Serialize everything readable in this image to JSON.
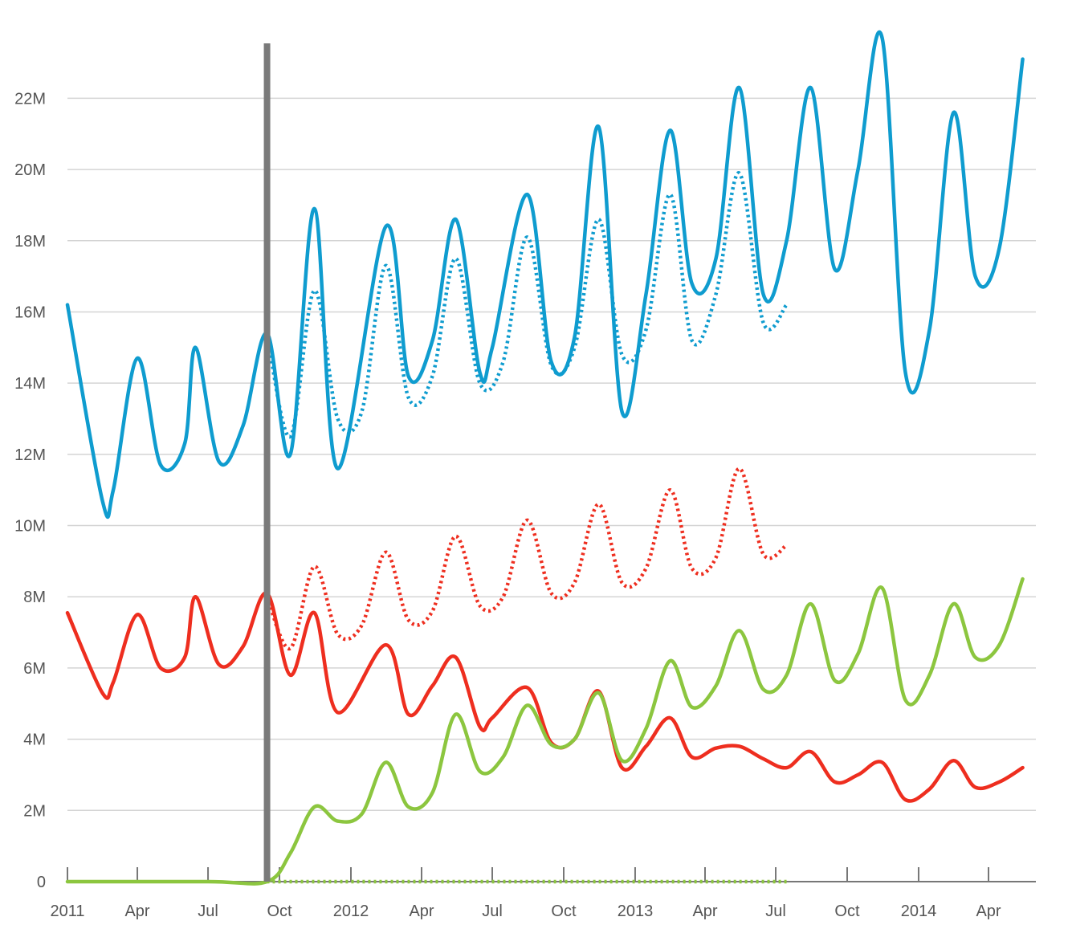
{
  "chart_data": {
    "type": "line",
    "title": "",
    "xlabel": "",
    "ylabel": "",
    "x_start": "2011-01",
    "x_end": "2014-06",
    "ylim": [
      0,
      23700000
    ],
    "grid": true,
    "yticks": [
      {
        "value": 0,
        "label": "0"
      },
      {
        "value": 2000000,
        "label": "2M"
      },
      {
        "value": 4000000,
        "label": "4M"
      },
      {
        "value": 6000000,
        "label": "6M"
      },
      {
        "value": 8000000,
        "label": "8M"
      },
      {
        "value": 10000000,
        "label": "10M"
      },
      {
        "value": 12000000,
        "label": "12M"
      },
      {
        "value": 14000000,
        "label": "14M"
      },
      {
        "value": 16000000,
        "label": "16M"
      },
      {
        "value": 18000000,
        "label": "18M"
      },
      {
        "value": 20000000,
        "label": "20M"
      },
      {
        "value": 22000000,
        "label": "22M"
      }
    ],
    "xticks": [
      {
        "date": "2011-01",
        "label": "2011"
      },
      {
        "date": "2011-04",
        "label": "Apr"
      },
      {
        "date": "2011-07",
        "label": "Jul"
      },
      {
        "date": "2011-10",
        "label": "Oct"
      },
      {
        "date": "2012-01",
        "label": "2012"
      },
      {
        "date": "2012-04",
        "label": "Apr"
      },
      {
        "date": "2012-07",
        "label": "Jul"
      },
      {
        "date": "2012-10",
        "label": "Oct"
      },
      {
        "date": "2013-01",
        "label": "2013"
      },
      {
        "date": "2013-04",
        "label": "Apr"
      },
      {
        "date": "2013-07",
        "label": "Jul"
      },
      {
        "date": "2013-10",
        "label": "Oct"
      },
      {
        "date": "2014-01",
        "label": "2014"
      },
      {
        "date": "2014-04",
        "label": "Apr"
      }
    ],
    "marker_line": {
      "date": "2011-09-15",
      "color": "#7a7a7a"
    },
    "series": [
      {
        "key": "blue-actual",
        "color": "#0f9ccf",
        "style": "solid",
        "points": [
          [
            "2011-01-01",
            16.2
          ],
          [
            "2011-02-15",
            10.7
          ],
          [
            "2011-03-01",
            11.0
          ],
          [
            "2011-04-01",
            14.7
          ],
          [
            "2011-05-01",
            11.7
          ],
          [
            "2011-06-01",
            12.3
          ],
          [
            "2011-06-15",
            15.0
          ],
          [
            "2011-07-15",
            11.8
          ],
          [
            "2011-08-15",
            12.8
          ],
          [
            "2011-09-15",
            15.4
          ],
          [
            "2011-10-15",
            12.0
          ],
          [
            "2011-11-15",
            18.9
          ],
          [
            "2011-12-15",
            11.6
          ],
          [
            "2012-02-15",
            18.4
          ],
          [
            "2012-03-15",
            14.2
          ],
          [
            "2012-04-15",
            15.2
          ],
          [
            "2012-05-15",
            18.6
          ],
          [
            "2012-06-15",
            14.3
          ],
          [
            "2012-07-01",
            15.0
          ],
          [
            "2012-08-15",
            19.3
          ],
          [
            "2012-09-15",
            14.6
          ],
          [
            "2012-10-15",
            15.3
          ],
          [
            "2012-11-15",
            21.2
          ],
          [
            "2012-12-15",
            13.2
          ],
          [
            "2013-01-15",
            16.5
          ],
          [
            "2013-02-15",
            21.1
          ],
          [
            "2013-03-15",
            16.8
          ],
          [
            "2013-04-15",
            17.5
          ],
          [
            "2013-05-15",
            22.3
          ],
          [
            "2013-06-15",
            16.5
          ],
          [
            "2013-07-15",
            18.0
          ],
          [
            "2013-08-15",
            22.3
          ],
          [
            "2013-09-15",
            17.2
          ],
          [
            "2013-10-15",
            20.0
          ],
          [
            "2013-11-15",
            23.7
          ],
          [
            "2013-12-15",
            14.3
          ],
          [
            "2014-01-15",
            15.5
          ],
          [
            "2014-02-15",
            21.6
          ],
          [
            "2014-03-15",
            17.0
          ],
          [
            "2014-04-15",
            17.8
          ],
          [
            "2014-05-15",
            23.1
          ]
        ]
      },
      {
        "key": "blue-projected",
        "color": "#0f9ccf",
        "style": "dotted",
        "points": [
          [
            "2011-09-15",
            15.4
          ],
          [
            "2011-10-15",
            12.5
          ],
          [
            "2011-11-15",
            16.6
          ],
          [
            "2011-12-15",
            13.0
          ],
          [
            "2012-01-15",
            13.2
          ],
          [
            "2012-02-15",
            17.3
          ],
          [
            "2012-03-15",
            13.6
          ],
          [
            "2012-04-15",
            14.2
          ],
          [
            "2012-05-15",
            17.5
          ],
          [
            "2012-06-15",
            14.0
          ],
          [
            "2012-07-15",
            14.6
          ],
          [
            "2012-08-15",
            18.1
          ],
          [
            "2012-09-15",
            14.5
          ],
          [
            "2012-10-15",
            15.0
          ],
          [
            "2012-11-15",
            18.6
          ],
          [
            "2012-12-15",
            14.8
          ],
          [
            "2013-01-15",
            15.5
          ],
          [
            "2013-02-15",
            19.3
          ],
          [
            "2013-03-15",
            15.2
          ],
          [
            "2013-04-15",
            16.5
          ],
          [
            "2013-05-15",
            19.9
          ],
          [
            "2013-06-15",
            15.7
          ],
          [
            "2013-07-15",
            16.2
          ]
        ]
      },
      {
        "key": "red-actual",
        "color": "#ee2e1f",
        "style": "solid",
        "points": [
          [
            "2011-01-01",
            7.55
          ],
          [
            "2011-02-15",
            5.3
          ],
          [
            "2011-03-01",
            5.6
          ],
          [
            "2011-04-01",
            7.5
          ],
          [
            "2011-05-01",
            6.0
          ],
          [
            "2011-06-01",
            6.3
          ],
          [
            "2011-06-15",
            8.0
          ],
          [
            "2011-07-15",
            6.1
          ],
          [
            "2011-08-15",
            6.6
          ],
          [
            "2011-09-15",
            8.1
          ],
          [
            "2011-10-15",
            5.8
          ],
          [
            "2011-11-15",
            7.55
          ],
          [
            "2011-12-15",
            4.75
          ],
          [
            "2012-02-15",
            6.65
          ],
          [
            "2012-03-15",
            4.7
          ],
          [
            "2012-04-15",
            5.5
          ],
          [
            "2012-05-15",
            6.3
          ],
          [
            "2012-06-15",
            4.35
          ],
          [
            "2012-07-01",
            4.6
          ],
          [
            "2012-08-15",
            5.45
          ],
          [
            "2012-09-15",
            3.9
          ],
          [
            "2012-10-15",
            4.0
          ],
          [
            "2012-11-15",
            5.35
          ],
          [
            "2012-12-15",
            3.2
          ],
          [
            "2013-01-15",
            3.8
          ],
          [
            "2013-02-15",
            4.6
          ],
          [
            "2013-03-15",
            3.5
          ],
          [
            "2013-04-15",
            3.75
          ],
          [
            "2013-05-15",
            3.8
          ],
          [
            "2013-06-15",
            3.45
          ],
          [
            "2013-07-15",
            3.2
          ],
          [
            "2013-08-15",
            3.65
          ],
          [
            "2013-09-15",
            2.8
          ],
          [
            "2013-10-15",
            3.0
          ],
          [
            "2013-11-15",
            3.35
          ],
          [
            "2013-12-15",
            2.3
          ],
          [
            "2014-01-15",
            2.6
          ],
          [
            "2014-02-15",
            3.4
          ],
          [
            "2014-03-15",
            2.65
          ],
          [
            "2014-04-15",
            2.8
          ],
          [
            "2014-05-15",
            3.2
          ]
        ]
      },
      {
        "key": "red-projected",
        "color": "#ee2e1f",
        "style": "dotted",
        "points": [
          [
            "2011-09-15",
            8.0
          ],
          [
            "2011-10-15",
            6.55
          ],
          [
            "2011-11-15",
            8.85
          ],
          [
            "2011-12-15",
            6.95
          ],
          [
            "2012-01-15",
            7.2
          ],
          [
            "2012-02-15",
            9.25
          ],
          [
            "2012-03-15",
            7.35
          ],
          [
            "2012-04-15",
            7.6
          ],
          [
            "2012-05-15",
            9.7
          ],
          [
            "2012-06-15",
            7.75
          ],
          [
            "2012-07-15",
            8.0
          ],
          [
            "2012-08-15",
            10.15
          ],
          [
            "2012-09-15",
            8.1
          ],
          [
            "2012-10-15",
            8.4
          ],
          [
            "2012-11-15",
            10.6
          ],
          [
            "2012-12-15",
            8.4
          ],
          [
            "2013-01-15",
            8.8
          ],
          [
            "2013-02-15",
            11.0
          ],
          [
            "2013-03-15",
            8.8
          ],
          [
            "2013-04-15",
            9.1
          ],
          [
            "2013-05-15",
            11.6
          ],
          [
            "2013-06-15",
            9.2
          ],
          [
            "2013-07-15",
            9.45
          ]
        ]
      },
      {
        "key": "green-actual",
        "color": "#8cc63f",
        "style": "solid",
        "points": [
          [
            "2011-01-01",
            0
          ],
          [
            "2011-07-01",
            0
          ],
          [
            "2011-09-15",
            0
          ],
          [
            "2011-10-15",
            0.8
          ],
          [
            "2011-11-15",
            2.1
          ],
          [
            "2011-12-15",
            1.7
          ],
          [
            "2012-01-15",
            1.9
          ],
          [
            "2012-02-15",
            3.35
          ],
          [
            "2012-03-15",
            2.1
          ],
          [
            "2012-04-15",
            2.5
          ],
          [
            "2012-05-15",
            4.7
          ],
          [
            "2012-06-15",
            3.1
          ],
          [
            "2012-07-15",
            3.5
          ],
          [
            "2012-08-15",
            4.95
          ],
          [
            "2012-09-15",
            3.85
          ],
          [
            "2012-10-15",
            4.0
          ],
          [
            "2012-11-15",
            5.3
          ],
          [
            "2012-12-15",
            3.4
          ],
          [
            "2013-01-15",
            4.3
          ],
          [
            "2013-02-15",
            6.2
          ],
          [
            "2013-03-15",
            4.9
          ],
          [
            "2013-04-15",
            5.5
          ],
          [
            "2013-05-15",
            7.05
          ],
          [
            "2013-06-15",
            5.4
          ],
          [
            "2013-07-15",
            5.8
          ],
          [
            "2013-08-15",
            7.8
          ],
          [
            "2013-09-15",
            5.65
          ],
          [
            "2013-10-15",
            6.4
          ],
          [
            "2013-11-15",
            8.25
          ],
          [
            "2013-12-15",
            5.1
          ],
          [
            "2014-01-15",
            5.8
          ],
          [
            "2014-02-15",
            7.8
          ],
          [
            "2014-03-15",
            6.3
          ],
          [
            "2014-04-15",
            6.65
          ],
          [
            "2014-05-15",
            8.5
          ]
        ]
      },
      {
        "key": "green-projected",
        "color": "#8cc63f",
        "style": "dotted",
        "points": [
          [
            "2011-09-15",
            0
          ],
          [
            "2013-07-15",
            0
          ]
        ]
      }
    ]
  }
}
